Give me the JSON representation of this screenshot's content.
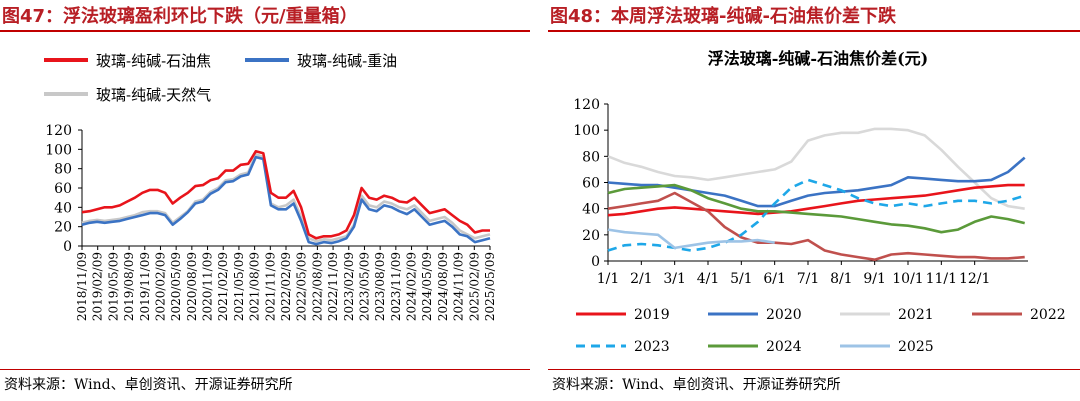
{
  "colors": {
    "title": "#b81f25",
    "rule": "#c00000"
  },
  "left": {
    "figure_title": "图47：浮法玻璃盈利环比下跌（元/重量箱）",
    "source": "资料来源：Wind、卓创资讯、开源证券研究所",
    "chart_data": {
      "type": "line",
      "title": "",
      "ylim": [
        0,
        120
      ],
      "yticks": [
        0,
        20,
        40,
        60,
        80,
        100,
        120
      ],
      "xtick_labels": [
        "2018/11/09",
        "2019/02/09",
        "2019/05/09",
        "2019/08/09",
        "2019/11/09",
        "2020/02/09",
        "2020/05/09",
        "2020/08/09",
        "2020/11/09",
        "2021/02/09",
        "2021/05/09",
        "2021/08/09",
        "2021/11/09",
        "2022/02/09",
        "2022/05/09",
        "2022/08/09",
        "2022/11/09",
        "2023/02/09",
        "2023/05/09",
        "2023/08/09",
        "2023/11/09",
        "2024/02/09",
        "2024/05/09",
        "2024/08/09",
        "2024/11/09",
        "2025/02/09",
        "2025/05/09"
      ],
      "legend": [
        "玻璃-纯碱-石油焦",
        "玻璃-纯碱-重油",
        "玻璃-纯碱-天然气"
      ],
      "series": [
        {
          "name": "玻璃-纯碱-石油焦",
          "color": "#e8141b",
          "values": [
            35,
            36,
            38,
            40,
            40,
            42,
            46,
            50,
            55,
            58,
            58,
            55,
            44,
            50,
            55,
            62,
            63,
            68,
            70,
            78,
            78,
            84,
            85,
            98,
            96,
            55,
            50,
            50,
            57,
            40,
            12,
            8,
            10,
            10,
            12,
            16,
            32,
            60,
            50,
            48,
            52,
            50,
            46,
            45,
            50,
            42,
            34,
            36,
            38,
            32,
            26,
            22,
            14,
            16,
            16
          ]
        },
        {
          "name": "玻璃-纯碱-重油",
          "color": "#3b73c4",
          "values": [
            22,
            24,
            25,
            24,
            25,
            26,
            28,
            30,
            32,
            34,
            34,
            32,
            22,
            28,
            35,
            44,
            46,
            54,
            58,
            66,
            67,
            72,
            74,
            92,
            90,
            42,
            38,
            38,
            44,
            26,
            4,
            2,
            4,
            3,
            5,
            8,
            20,
            48,
            38,
            36,
            42,
            40,
            36,
            33,
            38,
            30,
            22,
            24,
            26,
            20,
            12,
            10,
            4,
            6,
            8
          ]
        },
        {
          "name": "玻璃-纯碱-天然气",
          "color": "#c8c8c8",
          "values": [
            24,
            26,
            27,
            26,
            27,
            28,
            30,
            32,
            35,
            36,
            36,
            34,
            24,
            30,
            36,
            46,
            48,
            56,
            60,
            68,
            69,
            74,
            76,
            95,
            92,
            44,
            40,
            42,
            48,
            30,
            8,
            5,
            7,
            6,
            8,
            10,
            22,
            52,
            42,
            40,
            46,
            44,
            40,
            38,
            42,
            34,
            26,
            28,
            30,
            24,
            16,
            12,
            8,
            10,
            12
          ]
        }
      ]
    }
  },
  "right": {
    "figure_title": "图48：本周浮法玻璃-纯碱-石油焦价差下跌",
    "source": "资料来源：Wind、卓创资讯、开源证券研究所",
    "chart_data": {
      "type": "line",
      "title": "浮法玻璃-纯碱-石油焦价差(元)",
      "ylim": [
        0,
        120
      ],
      "yticks": [
        0,
        20,
        40,
        60,
        80,
        100,
        120
      ],
      "categories": [
        "1/1",
        "2/1",
        "3/1",
        "4/1",
        "5/1",
        "6/1",
        "7/1",
        "8/1",
        "9/1",
        "10/1",
        "11/1",
        "12/1"
      ],
      "legend": [
        "2019",
        "2020",
        "2021",
        "2022",
        "2023",
        "2024",
        "2025"
      ],
      "series": [
        {
          "name": "2019",
          "color": "#e8141b",
          "dash": "solid",
          "x": [
            0,
            0.5,
            1,
            1.5,
            2,
            2.5,
            3,
            3.5,
            4,
            4.5,
            5,
            5.5,
            6,
            6.5,
            7,
            7.5,
            8,
            8.5,
            9,
            9.5,
            10,
            10.5,
            11,
            11.5,
            12,
            12.5
          ],
          "values": [
            35,
            36,
            38,
            40,
            41,
            40,
            39,
            38,
            37,
            36,
            37,
            38,
            40,
            42,
            44,
            46,
            47,
            48,
            49,
            50,
            52,
            54,
            56,
            57,
            58,
            58
          ]
        },
        {
          "name": "2020",
          "color": "#3b73c4",
          "dash": "solid",
          "x": [
            0,
            0.5,
            1,
            1.5,
            2,
            2.5,
            3,
            3.5,
            4,
            4.5,
            5,
            5.5,
            6,
            6.5,
            7,
            7.5,
            8,
            8.5,
            9,
            9.5,
            10,
            10.5,
            11,
            11.5,
            12,
            12.5
          ],
          "values": [
            60,
            59,
            58,
            58,
            56,
            54,
            52,
            50,
            46,
            42,
            42,
            46,
            50,
            52,
            53,
            54,
            56,
            58,
            64,
            63,
            62,
            61,
            61,
            62,
            68,
            79
          ]
        },
        {
          "name": "2021",
          "color": "#d9d9d9",
          "dash": "solid",
          "x": [
            0,
            0.5,
            1,
            1.5,
            2,
            2.5,
            3,
            3.5,
            4,
            4.5,
            5,
            5.5,
            6,
            6.5,
            7,
            7.5,
            8,
            8.5,
            9,
            9.5,
            10,
            10.5,
            11,
            11.5,
            12,
            12.5
          ],
          "values": [
            80,
            75,
            72,
            68,
            65,
            64,
            62,
            64,
            66,
            68,
            70,
            76,
            92,
            96,
            98,
            98,
            101,
            101,
            100,
            96,
            85,
            72,
            60,
            48,
            42,
            40
          ]
        },
        {
          "name": "2022",
          "color": "#c0504d",
          "dash": "solid",
          "x": [
            0,
            0.5,
            1,
            1.5,
            2,
            2.5,
            3,
            3.5,
            4,
            4.5,
            5,
            5.5,
            6,
            6.5,
            7,
            7.5,
            8,
            8.5,
            9,
            9.5,
            10,
            10.5,
            11,
            11.5,
            12,
            12.5
          ],
          "values": [
            40,
            42,
            44,
            46,
            52,
            45,
            38,
            26,
            18,
            14,
            14,
            13,
            16,
            8,
            5,
            3,
            1,
            5,
            6,
            5,
            4,
            3,
            3,
            2,
            2,
            3
          ]
        },
        {
          "name": "2023",
          "color": "#1ea7e8",
          "dash": "dashed",
          "x": [
            0,
            0.5,
            1,
            1.5,
            2,
            2.5,
            3,
            3.5,
            4,
            4.5,
            5,
            5.5,
            6,
            6.5,
            7,
            7.5,
            8,
            8.5,
            9,
            9.5,
            10,
            10.5,
            11,
            11.5,
            12,
            12.5
          ],
          "values": [
            8,
            12,
            13,
            12,
            10,
            8,
            10,
            14,
            20,
            30,
            44,
            56,
            62,
            58,
            54,
            48,
            44,
            42,
            44,
            42,
            44,
            46,
            46,
            44,
            46,
            50
          ]
        },
        {
          "name": "2024",
          "color": "#5b9a3a",
          "dash": "solid",
          "x": [
            0,
            0.5,
            1,
            1.5,
            2,
            2.5,
            3,
            3.5,
            4,
            4.5,
            5,
            5.5,
            6,
            6.5,
            7,
            7.5,
            8,
            8.5,
            9,
            9.5,
            10,
            10.5,
            11,
            11.5,
            12,
            12.5
          ],
          "values": [
            52,
            55,
            56,
            57,
            58,
            54,
            48,
            44,
            40,
            38,
            38,
            37,
            36,
            35,
            34,
            32,
            30,
            28,
            27,
            25,
            22,
            24,
            30,
            34,
            32,
            29
          ]
        },
        {
          "name": "2025",
          "color": "#9dc3e6",
          "dash": "solid",
          "x": [
            0,
            0.5,
            1,
            1.5,
            2,
            2.5,
            3,
            3.5,
            4,
            4.5,
            5
          ],
          "values": [
            24,
            22,
            21,
            20,
            10,
            12,
            14,
            15,
            15,
            16,
            14
          ]
        }
      ]
    }
  }
}
